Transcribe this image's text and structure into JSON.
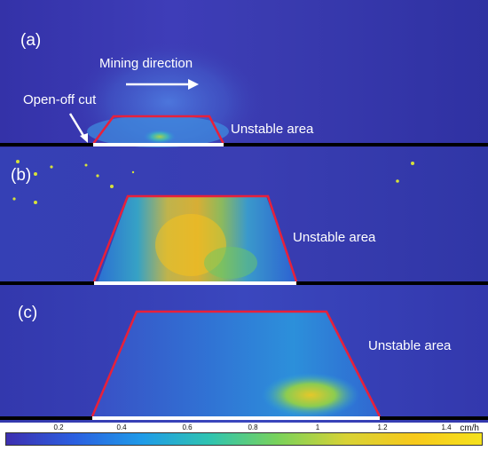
{
  "panels": [
    {
      "label": "(a)",
      "annotation": "Unstable area"
    },
    {
      "label": "(b)",
      "annotation": "Unstable area"
    },
    {
      "label": "(c)",
      "annotation": "Unstable area"
    }
  ],
  "mining_direction": "Mining direction",
  "open_off_cut": "Open-off cut",
  "colorbar": {
    "ticks": [
      "0.2",
      "0.4",
      "0.6",
      "0.8",
      "1",
      "1.2",
      "1.4"
    ],
    "unit": "cm/h",
    "colors": [
      "#3d2fb0",
      "#2b5fe0",
      "#1f9be8",
      "#2fc4b0",
      "#7ad25a",
      "#d8d235",
      "#f7c91b",
      "#f5e11c"
    ]
  },
  "colors": {
    "background": "#2e2fa8",
    "boundary": "#e8203a",
    "workface": "#ffffff",
    "baseline": "#000000"
  }
}
